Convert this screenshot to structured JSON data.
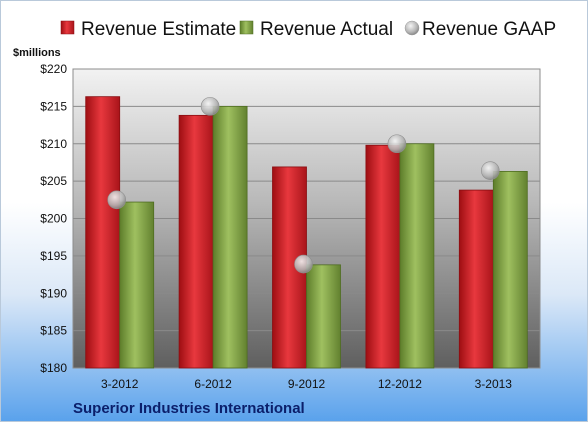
{
  "chart_data": {
    "type": "bar",
    "title": "",
    "unit_label": "$millions",
    "company": "Superior Industries International",
    "categories": [
      "3-2012",
      "6-2012",
      "9-2012",
      "12-2012",
      "3-2013"
    ],
    "series": [
      {
        "name": "Revenue Estimate",
        "type": "bar",
        "color": "#cc1f26",
        "values": [
          216.3,
          213.8,
          206.9,
          209.8,
          203.8
        ]
      },
      {
        "name": "Revenue Actual",
        "type": "bar",
        "color": "#7fa043",
        "values": [
          202.2,
          215.0,
          193.8,
          210.0,
          206.3
        ]
      },
      {
        "name": "Revenue GAAP",
        "type": "marker",
        "color": "#b0b0b0",
        "values": [
          202.5,
          215.0,
          193.9,
          210.0,
          206.4
        ]
      }
    ],
    "ylim": [
      180,
      220
    ],
    "yticks": [
      180,
      185,
      190,
      195,
      200,
      205,
      210,
      215,
      220
    ],
    "ytick_labels": [
      "$180",
      "$185",
      "$190",
      "$195",
      "$200",
      "$205",
      "$210",
      "$215",
      "$220"
    ],
    "grid": true,
    "legend_position": "top"
  }
}
